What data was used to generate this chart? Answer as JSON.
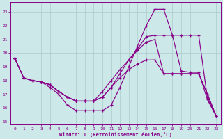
{
  "bg_color": "#cce8e8",
  "grid_color": "#aacccc",
  "line_color": "#880088",
  "xlabel": "Windchill (Refroidissement éolien,°C)",
  "xlim": [
    -0.5,
    23.5
  ],
  "ylim": [
    14.8,
    23.7
  ],
  "xticks": [
    0,
    1,
    2,
    3,
    4,
    5,
    6,
    7,
    8,
    9,
    10,
    11,
    12,
    13,
    14,
    15,
    16,
    17,
    18,
    19,
    20,
    21,
    22,
    23
  ],
  "yticks": [
    15,
    16,
    17,
    18,
    19,
    20,
    21,
    22,
    23
  ],
  "lines": [
    {
      "x": [
        0,
        1,
        2,
        3,
        4,
        5,
        6,
        7,
        8,
        9,
        10,
        11,
        12,
        13,
        14,
        15,
        16,
        17,
        18,
        19,
        20,
        21,
        22,
        23
      ],
      "y": [
        19.6,
        18.2,
        18.0,
        17.9,
        17.5,
        17.0,
        16.2,
        15.8,
        15.8,
        15.8,
        15.8,
        16.2,
        17.5,
        19.0,
        20.5,
        22.0,
        23.2,
        23.2,
        21.3,
        18.7,
        18.6,
        18.6,
        16.6,
        15.4
      ]
    },
    {
      "x": [
        0,
        1,
        2,
        3,
        4,
        5,
        6,
        7,
        8,
        9,
        10,
        11,
        12,
        13,
        14,
        15,
        16,
        17,
        18,
        19,
        20,
        21,
        22,
        23
      ],
      "y": [
        19.6,
        18.2,
        18.0,
        17.9,
        17.7,
        17.2,
        16.8,
        16.5,
        16.5,
        16.5,
        16.8,
        17.5,
        18.5,
        19.5,
        20.3,
        21.2,
        21.3,
        21.3,
        21.3,
        21.3,
        21.3,
        21.3,
        16.7,
        15.4
      ]
    },
    {
      "x": [
        0,
        1,
        2,
        3,
        4,
        5,
        6,
        7,
        8,
        9,
        10,
        11,
        12,
        13,
        14,
        15,
        16,
        17,
        18,
        19,
        20,
        21,
        22,
        23
      ],
      "y": [
        19.6,
        18.2,
        18.0,
        17.9,
        17.7,
        17.2,
        16.8,
        16.5,
        16.5,
        16.5,
        17.2,
        18.0,
        18.8,
        19.5,
        20.2,
        20.8,
        21.0,
        18.5,
        18.5,
        18.5,
        18.5,
        18.5,
        17.0,
        15.4
      ]
    },
    {
      "x": [
        0,
        1,
        2,
        3,
        4,
        5,
        6,
        7,
        8,
        9,
        10,
        11,
        12,
        13,
        14,
        15,
        16,
        17,
        18,
        19,
        20,
        21,
        22,
        23
      ],
      "y": [
        19.6,
        18.2,
        18.0,
        17.9,
        17.7,
        17.2,
        16.8,
        16.5,
        16.5,
        16.5,
        16.8,
        17.5,
        18.2,
        18.8,
        19.2,
        19.5,
        19.5,
        18.5,
        18.5,
        18.5,
        18.5,
        18.5,
        17.0,
        15.4
      ]
    }
  ]
}
